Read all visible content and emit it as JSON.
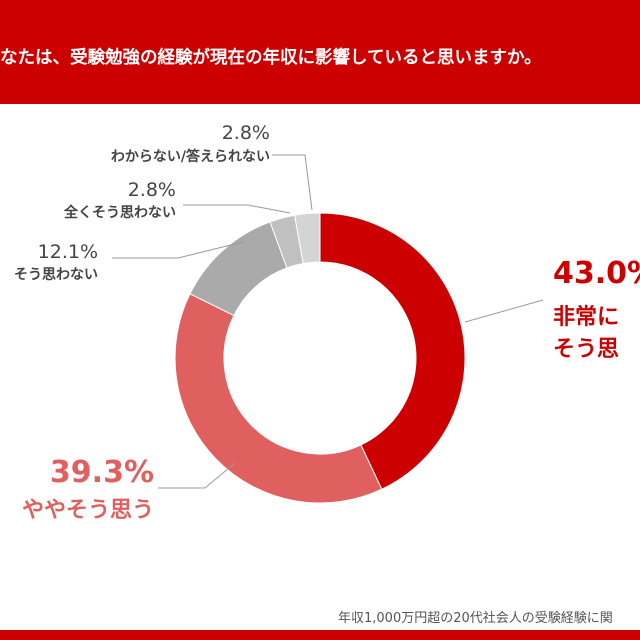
{
  "header": {
    "question": "なたは、受験勉強の経験が現在の年収に影響していると思いますか。"
  },
  "source": "年収1,000万円超の20代社会人の受験経験に関",
  "colors": {
    "brand_red": "#cc0000",
    "muted_red": "#e06060",
    "gray": "#aaaaaa",
    "light_gray": "#c0c0c0",
    "lighter_gray": "#d4d4d4"
  },
  "chart_data": {
    "type": "pie",
    "title": "",
    "slices": [
      {
        "label": "非常に そう思",
        "pct_label": "43.0%",
        "value": 43.0,
        "color": "#cc0000"
      },
      {
        "label": "ややそう思う",
        "pct_label": "39.3%",
        "value": 39.3,
        "color": "#e06060"
      },
      {
        "label": "そう思わない",
        "pct_label": "12.1%",
        "value": 12.1,
        "color": "#aaaaaa"
      },
      {
        "label": "全くそう思わない",
        "pct_label": "2.8%",
        "value": 2.8,
        "color": "#c0c0c0"
      },
      {
        "label": "わからない/答えられない",
        "pct_label": "2.8%",
        "value": 2.8,
        "color": "#d4d4d4"
      }
    ]
  }
}
